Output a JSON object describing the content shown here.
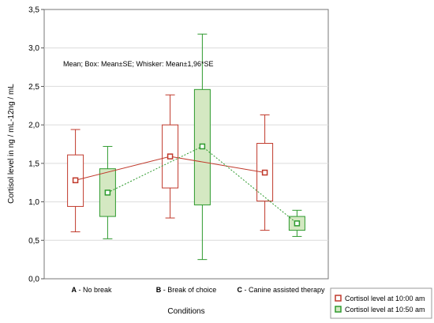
{
  "chart_data": {
    "type": "box",
    "title": "",
    "xlabel": "Conditions",
    "ylabel": "Cortisol level in ng / mL-12ng / mL",
    "ylim": [
      0,
      3.5
    ],
    "yticks": [
      "0,0",
      "0,5",
      "1,0",
      "1,5",
      "2,0",
      "2,5",
      "3,0",
      "3,5"
    ],
    "ytick_values": [
      0,
      0.5,
      1.0,
      1.5,
      2.0,
      2.5,
      3.0,
      3.5
    ],
    "annotation": "Mean; Box: Mean±SE; Whisker: Mean±1,96*SE",
    "grid": "horizontal",
    "legend_position": "bottom-right",
    "categories": [
      {
        "prefix": "A",
        "rest": " - No break"
      },
      {
        "prefix": "B",
        "rest": " - Break of choice"
      },
      {
        "prefix": "C",
        "rest": " - Canine assisted therapy"
      }
    ],
    "series": [
      {
        "name": "Cortisol level at 10:00 am",
        "color": "#c0392b",
        "fill": "#ffffff",
        "line": "solid",
        "mean": [
          1.28,
          1.59,
          1.38
        ],
        "box_low": [
          0.94,
          1.18,
          1.01
        ],
        "box_high": [
          1.61,
          2.0,
          1.76
        ],
        "whisker_low": [
          0.61,
          0.79,
          0.63
        ],
        "whisker_high": [
          1.94,
          2.39,
          2.13
        ]
      },
      {
        "name": "Cortisol level at 10:50 am",
        "color": "#2e9a2e",
        "fill": "#d4e8c2",
        "line": "dotted",
        "mean": [
          1.12,
          1.72,
          0.72
        ],
        "box_low": [
          0.81,
          0.96,
          0.63
        ],
        "box_high": [
          1.43,
          2.46,
          0.81
        ],
        "whisker_low": [
          0.52,
          0.25,
          0.55
        ],
        "whisker_high": [
          1.72,
          3.18,
          0.89
        ]
      }
    ]
  }
}
